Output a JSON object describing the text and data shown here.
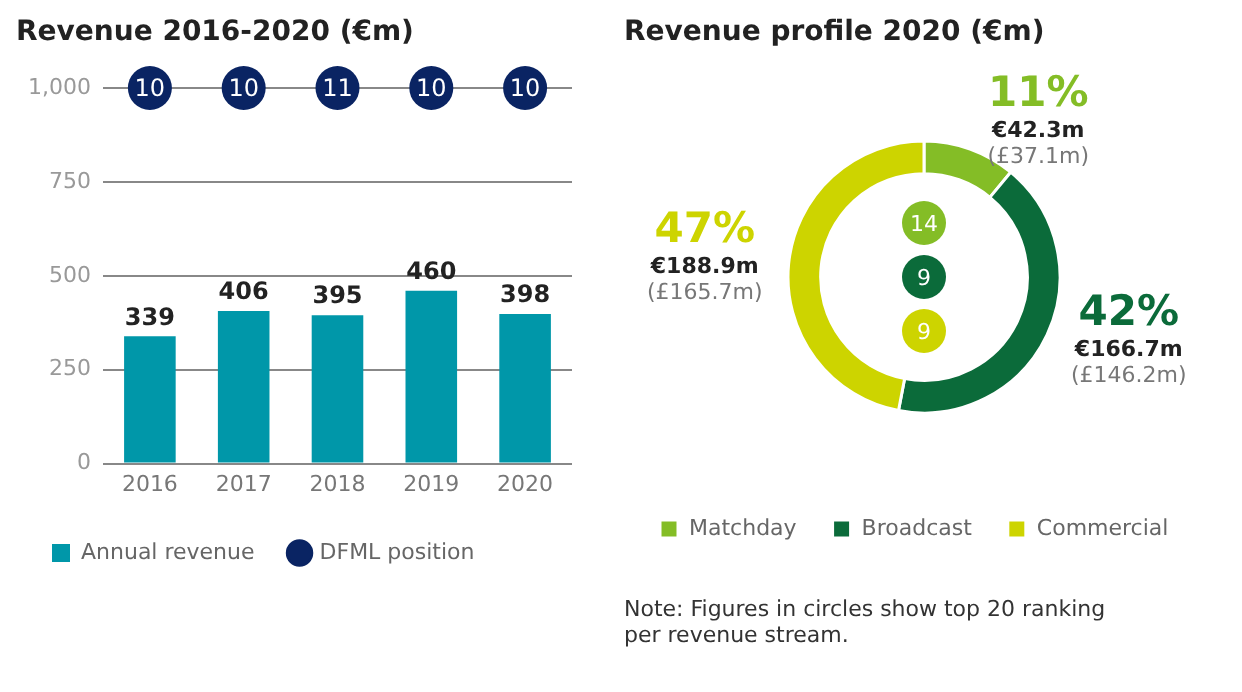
{
  "chart_data": [
    {
      "type": "bar",
      "title": "Revenue 2016-2020 (€m)",
      "categories": [
        "2016",
        "2017",
        "2018",
        "2019",
        "2020"
      ],
      "series": [
        {
          "name": "Annual revenue",
          "color": "#0097a9",
          "values": [
            339,
            406,
            395,
            460,
            398
          ]
        },
        {
          "name": "DFML position",
          "type": "scatter",
          "color": "#0a2463",
          "values": [
            null,
            null,
            null,
            null,
            null
          ]
        }
      ],
      "annotations": [
        {
          "text": "10",
          "x": "2016",
          "y": 1000
        },
        {
          "text": "10",
          "x": "2017",
          "y": 1000
        },
        {
          "text": "11",
          "x": "2018",
          "y": 1000
        },
        {
          "text": "10",
          "x": "2019",
          "y": 1000
        },
        {
          "text": "10",
          "x": "2020",
          "y": 1000
        }
      ],
      "data_labels": true,
      "ylim": [
        0,
        1000
      ],
      "yticks": [
        0,
        250,
        500,
        750,
        {
          "value": 1000,
          "label": "1,000"
        }
      ],
      "grid": "y",
      "legend": "bottom left",
      "marker": "circle"
    },
    {
      "type": "donut",
      "title": "Revenue profile 2020 (€m)",
      "categories": [
        "Matchday",
        "Broadcast",
        "Commercial"
      ],
      "values": [
        11,
        42,
        47
      ],
      "colors": [
        "#84bd26",
        "#0b6b3a",
        "#cdd400"
      ],
      "value_labels": [
        "11%\n€42.3m\n(£37.1m)",
        "42%\n€166.7m\n(£146.2m)",
        "47%\n€188.9m\n(£165.7m)"
      ],
      "legend": "bottom left",
      "annotations": [
        {
          "text": "14",
          "x": "Matchday"
        },
        {
          "text": "9",
          "x": "Broadcast"
        },
        {
          "text": "9",
          "x": "Commercial"
        },
        "Note: Figures in circles show top 20 ranking\nper revenue stream."
      ]
    }
  ]
}
